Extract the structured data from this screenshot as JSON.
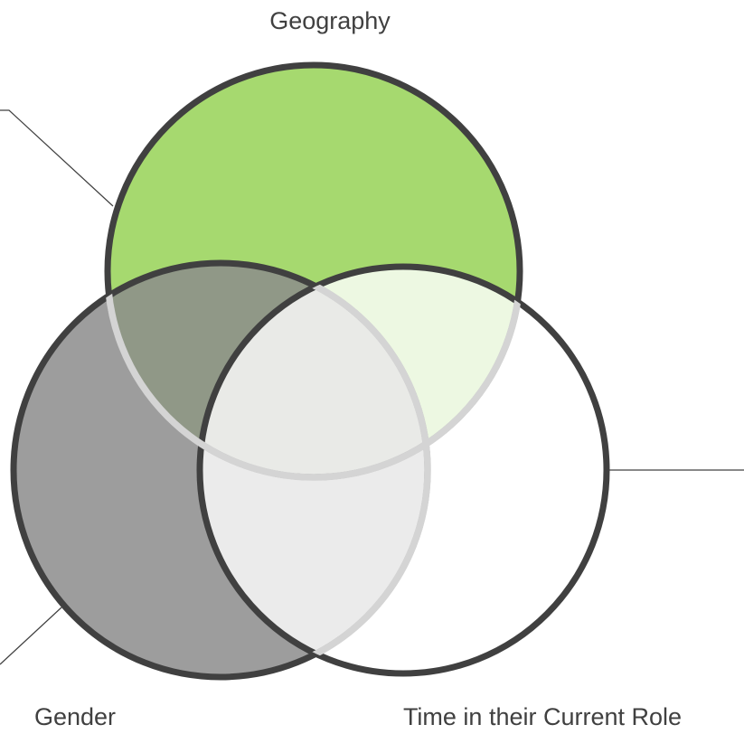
{
  "labels": {
    "top": "Geography",
    "left": "Gender",
    "right": "Time in their Current Role"
  }
}
